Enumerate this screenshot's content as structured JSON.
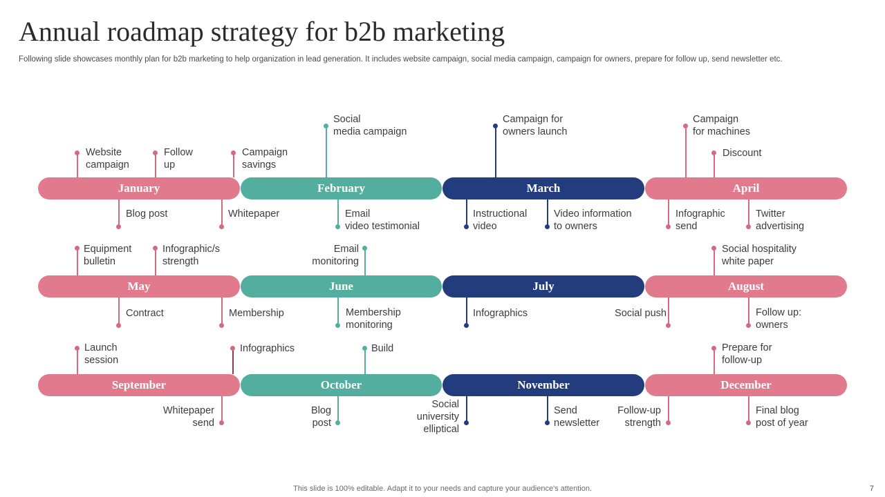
{
  "title": "Annual roadmap strategy for b2b marketing",
  "subtitle": "Following slide showcases monthly plan for b2b marketing to help organization in lead generation. It includes website campaign, social media campaign, campaign for owners, prepare for follow up, send newsletter etc.",
  "footer": "This slide is 100% editable. Adapt it to your needs and capture your audience's attention.",
  "page_number": "7",
  "colors": {
    "pink": "#e07a8c",
    "teal": "#53ae9f",
    "navy": "#223c7e"
  },
  "months": {
    "january": "January",
    "february": "February",
    "march": "March",
    "april": "April",
    "may": "May",
    "june": "June",
    "july": "July",
    "august": "August",
    "september": "September",
    "october": "October",
    "november": "November",
    "december": "December"
  },
  "items": {
    "jan_above_1": "Website\ncampaign",
    "jan_above_2": "Follow\nup",
    "jan_above_3": "Campaign\nsavings",
    "jan_below_1": "Blog post",
    "jan_below_2": "Whitepaper",
    "feb_above_1": "Social\nmedia campaign",
    "feb_below_1": "Email\nvideo testimonial",
    "mar_above_1": "Campaign for\nowners launch",
    "mar_below_1": "Instructional\nvideo",
    "mar_below_2": "Video information\nto owners",
    "apr_above_1": "Campaign\nfor machines",
    "apr_above_2": "Discount",
    "apr_below_1": "Infographic\nsend",
    "apr_below_2": "Twitter\nadvertising",
    "may_above_1": "Equipment\nbulletin",
    "may_above_2": "Infographic/s\nstrength",
    "may_below_1": "Contract",
    "may_below_2": "Membership",
    "jun_above_1": "Email\nmonitoring",
    "jun_below_1": "Membership\nmonitoring",
    "jul_below_1": "Infographics",
    "aug_above_1": "Social hospitality\nwhite paper",
    "aug_below_1": "Social push",
    "aug_below_2": "Follow up:\nowners",
    "sep_above_1": "Launch\nsession",
    "sep_above_2": "Infographics",
    "sep_below_1": "Whitepaper\nsend",
    "oct_above_1": "Build",
    "oct_below_1": "Blog\npost",
    "nov_below_1": "Social\nuniversity\nelliptical",
    "nov_below_2": "Send\nnewsletter",
    "dec_above_1": "Prepare for\nfollow-up",
    "dec_below_1": "Follow-up\nstrength",
    "dec_below_2": "Final blog\npost of year"
  }
}
